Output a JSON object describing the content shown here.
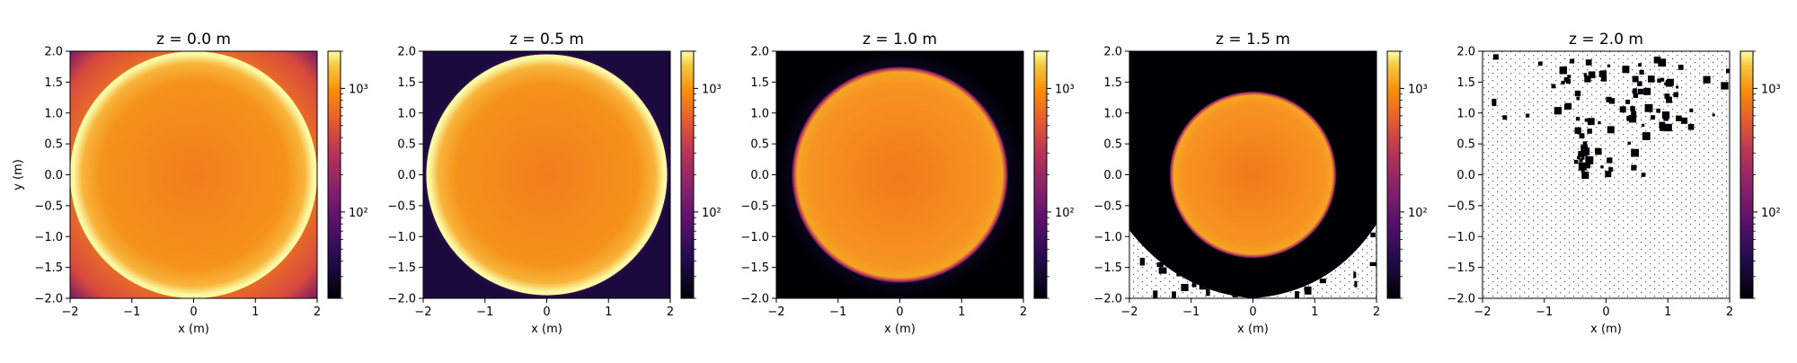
{
  "chart_data": {
    "type": "heatmap",
    "scale": "log",
    "colormap": "inferno",
    "colorbar": {
      "ticks": [
        {
          "value": 100,
          "label": "10²"
        },
        {
          "value": 1000,
          "label": "10³"
        }
      ]
    },
    "xlabel": "x (m)",
    "ylabel": "y (m)",
    "xlim": [
      -2,
      2
    ],
    "ylim": [
      -2,
      2
    ],
    "x_ticks": [
      "−2",
      "−1",
      "0",
      "1",
      "2"
    ],
    "y_ticks": [
      "−2.0",
      "−1.5",
      "−1.0",
      "−0.5",
      "0.0",
      "0.5",
      "1.0",
      "1.5",
      "2.0"
    ],
    "panels": [
      {
        "title": "z = 0.0 m",
        "z": 0.0,
        "disk_radius": 2.0,
        "rim": "bright",
        "halo": false,
        "empty_cells": "none"
      },
      {
        "title": "z = 0.5 m",
        "z": 0.5,
        "disk_radius": 1.95,
        "rim": "bright",
        "halo": true,
        "empty_cells": "none"
      },
      {
        "title": "z = 1.0 m",
        "z": 1.0,
        "disk_radius": 1.75,
        "rim": "dark",
        "halo": true,
        "empty_cells": "none"
      },
      {
        "title": "z = 1.5 m",
        "z": 1.5,
        "disk_radius": 1.35,
        "rim": "dark",
        "halo": false,
        "empty_cells": "lower corners"
      },
      {
        "title": "z = 2.0 m",
        "z": 2.0,
        "disk_radius": 0,
        "rim": "none",
        "halo": false,
        "empty_cells": "most of plane"
      }
    ]
  }
}
